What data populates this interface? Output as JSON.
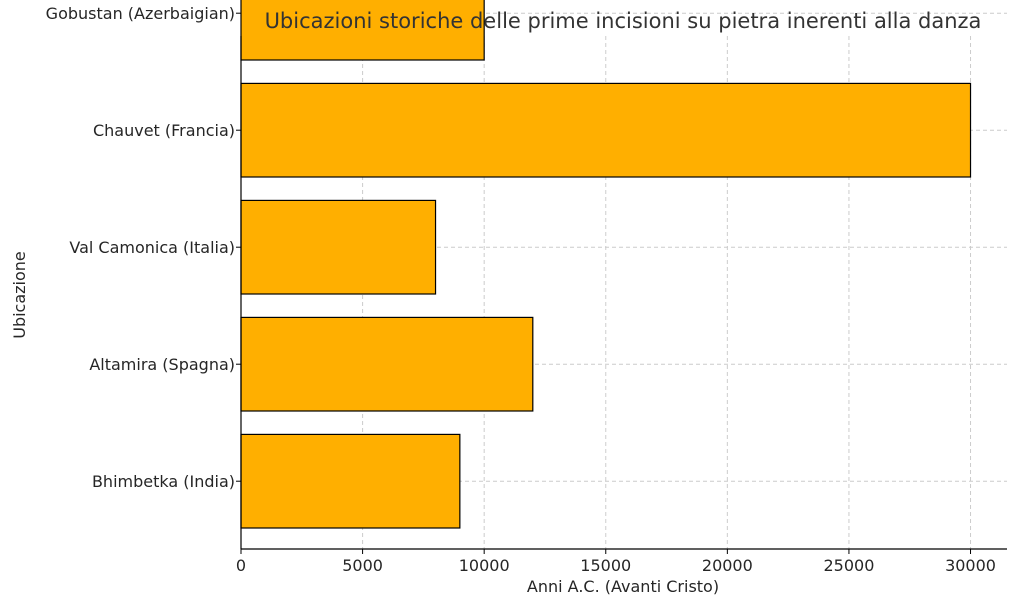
{
  "chart_data": {
    "type": "bar",
    "orientation": "horizontal",
    "title": "Ubicazioni storiche delle prime incisioni su pietra inerenti alla danza",
    "xlabel": "Anni A.C. (Avanti Cristo)",
    "ylabel": "Ubicazione",
    "categories": [
      "Bhimbetka (India)",
      "Altamira (Spagna)",
      "Val Camonica (Italia)",
      "Chauvet (Francia)",
      "Gobustan (Azerbaigian)"
    ],
    "values": [
      9000,
      12000,
      8000,
      30000,
      10000
    ],
    "xlim": [
      0,
      31500
    ],
    "xticks": [
      0,
      5000,
      10000,
      15000,
      20000,
      25000,
      30000
    ],
    "grid": true,
    "bar_color": "#ffaf00",
    "edge_color": "#000000"
  }
}
